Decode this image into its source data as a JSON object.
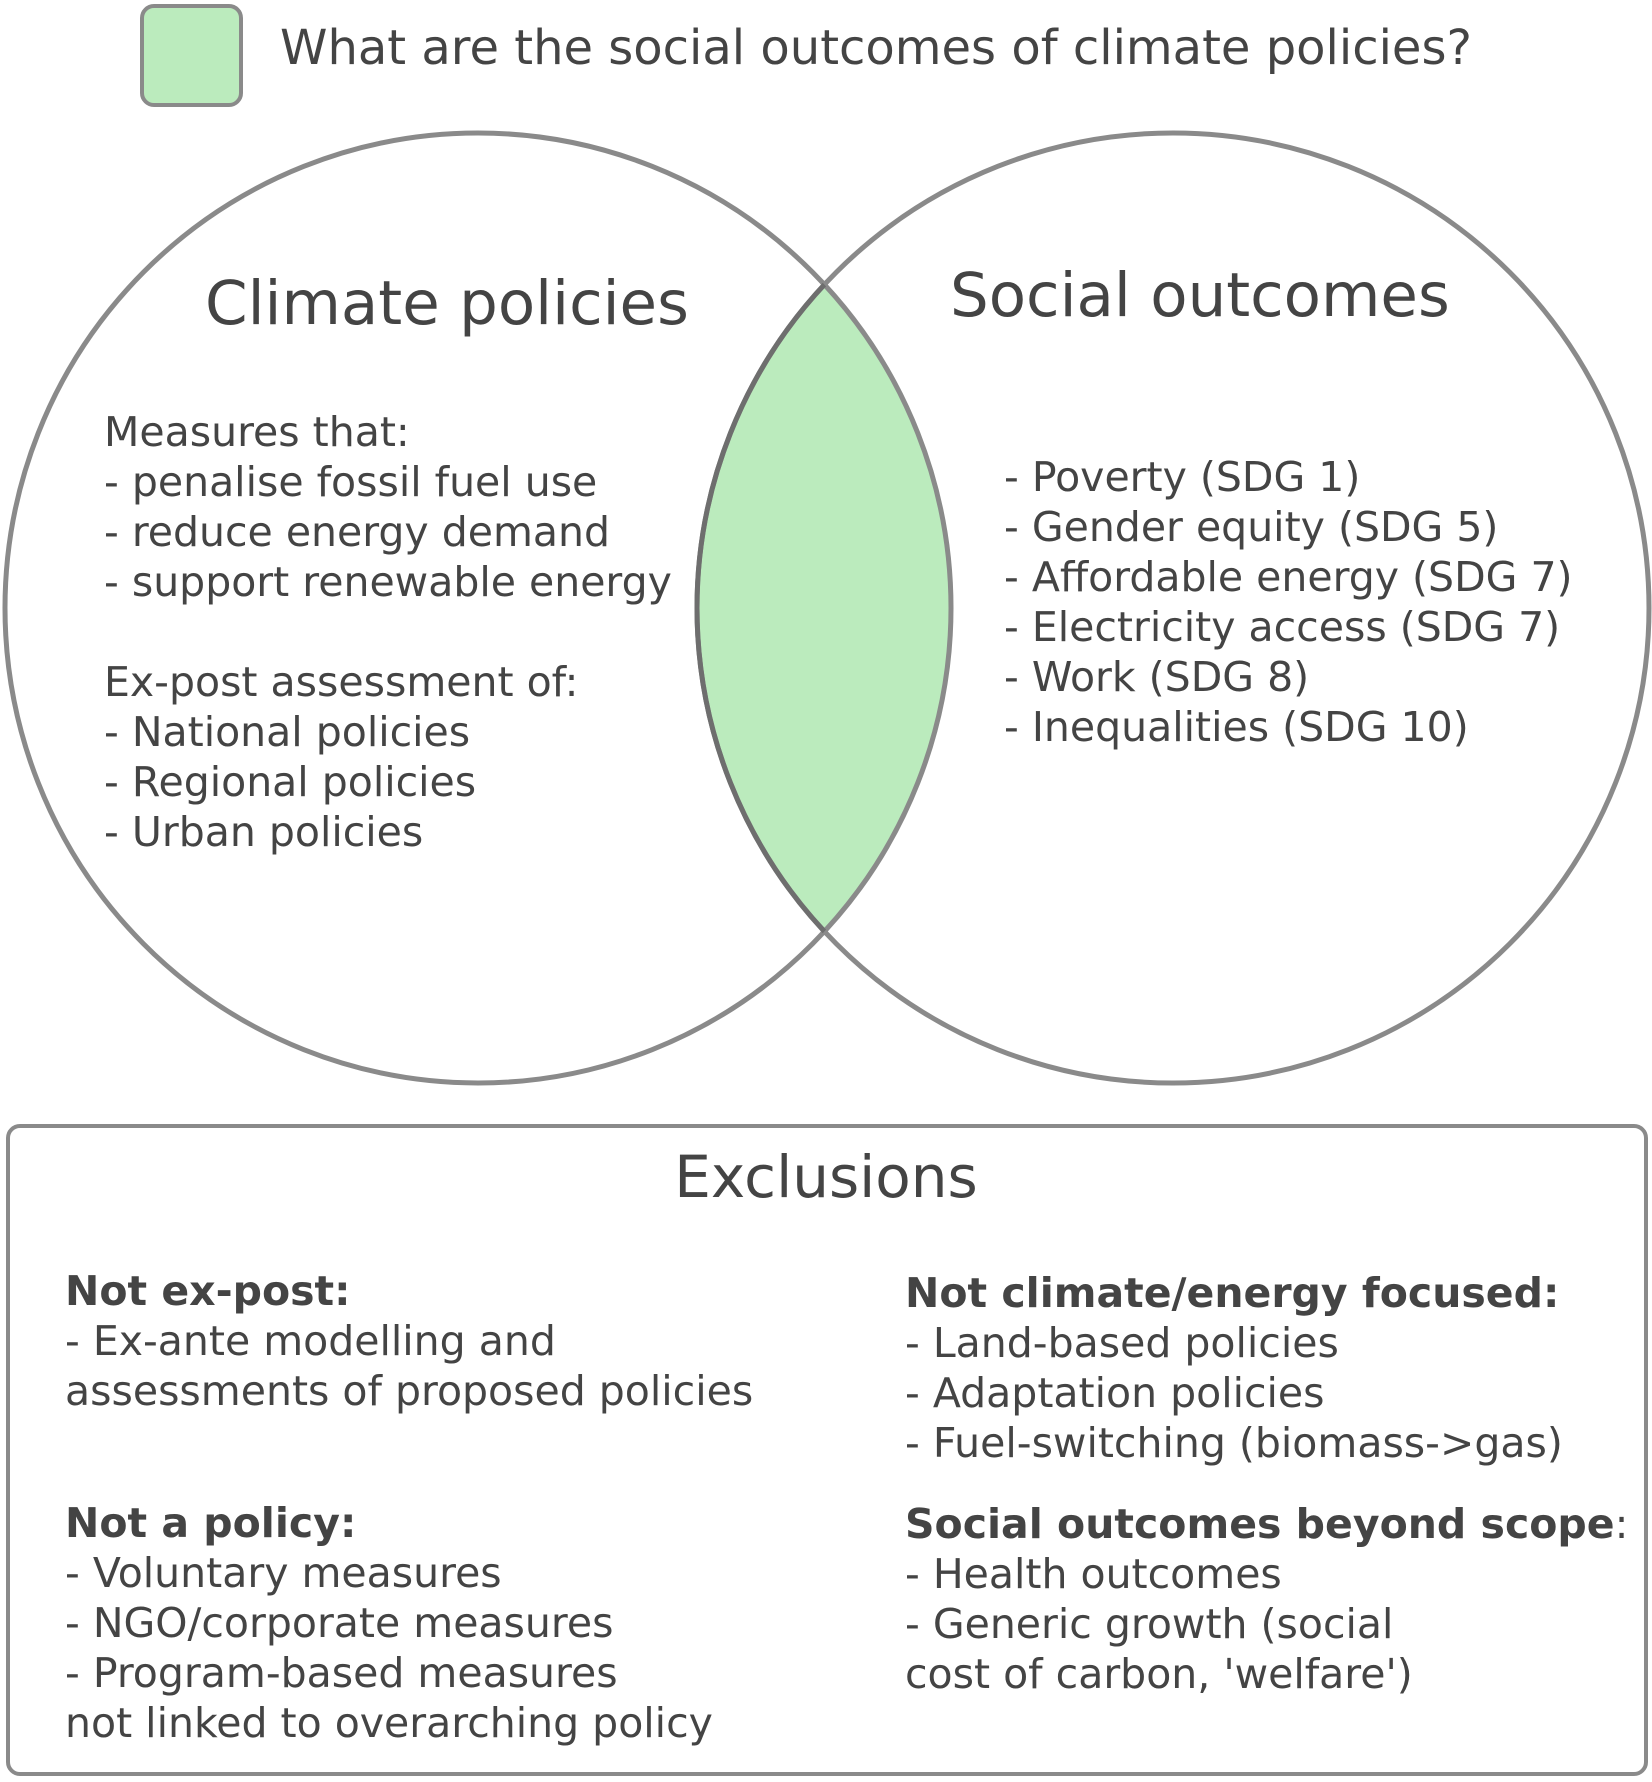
{
  "legend": {
    "label": "What are the social outcomes of climate policies?",
    "swatch_color": "#bbebbd"
  },
  "left_circle": {
    "title": "Climate policies",
    "measures_heading": "Measures that:",
    "measures": [
      "- penalise fossil fuel use",
      "- reduce energy demand",
      "- support renewable energy"
    ],
    "assessment_heading": "Ex-post assessment of:",
    "assessments": [
      "- National policies",
      "- Regional policies",
      "- Urban policies"
    ]
  },
  "right_circle": {
    "title": "Social outcomes",
    "outcomes": [
      "- Poverty (SDG 1)",
      "- Gender equity (SDG 5)",
      "- Affordable energy (SDG 7)",
      "- Electricity access (SDG 7)",
      "- Work (SDG 8)",
      "- Inequalities (SDG 10)"
    ]
  },
  "intersection_color": "#bbebbd",
  "exclusions": {
    "title": "Exclusions",
    "not_ex_post": {
      "heading": "Not ex-post:",
      "items": [
        "- Ex-ante modelling and",
        "assessments of proposed policies"
      ]
    },
    "not_a_policy": {
      "heading": "Not a policy:",
      "items": [
        "- Voluntary measures",
        "- NGO/corporate measures",
        "- Program-based measures",
        "not linked to overarching policy"
      ]
    },
    "not_climate_focused": {
      "heading": "Not climate/energy focused:",
      "items": [
        "- Land-based policies",
        "- Adaptation policies",
        "- Fuel-switching (biomass->gas)"
      ]
    },
    "beyond_scope": {
      "heading": "Social outcomes beyond scope",
      "heading_suffix": ":",
      "items": [
        "- Health outcomes",
        "- Generic growth (social",
        "cost of carbon, 'welfare')"
      ]
    }
  }
}
